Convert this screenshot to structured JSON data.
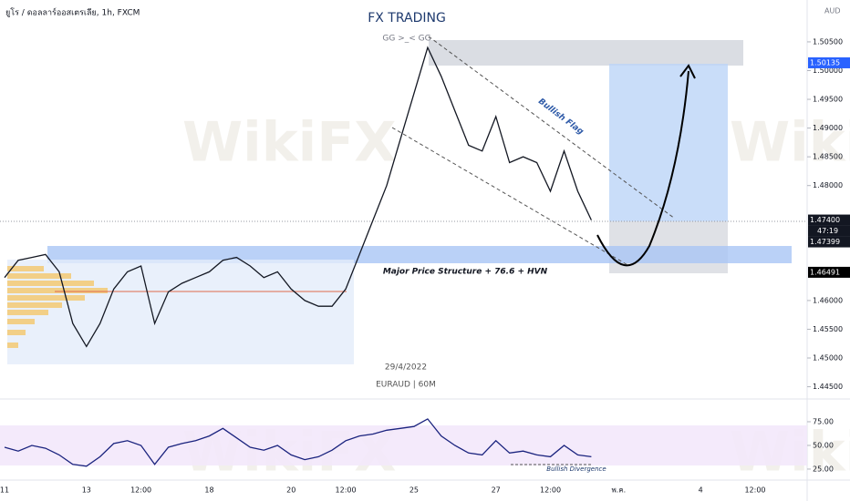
{
  "chart_data": [
    {
      "type": "line",
      "title": "FX TRADING",
      "subtitle": "GG >_< GG",
      "symbol": "ยูโร / ดอลลาร์ออสเตรเลีย, 1h, FXCM",
      "currency": "AUD",
      "watermark": "WikiFX",
      "annotations": [
        "Bullish Flag",
        "Major Price Structure + 76.6 + HVN",
        "29/4/2022",
        "EURAUD | 60M"
      ],
      "countdown": "47:19",
      "categories": [
        "11",
        null,
        null,
        null,
        null,
        null,
        "13",
        null,
        null,
        null,
        "12:00",
        null,
        null,
        null,
        null,
        "18",
        null,
        null,
        null,
        null,
        null,
        "20",
        null,
        null,
        null,
        "12:00",
        null,
        null,
        null,
        null,
        "25",
        null,
        null,
        null,
        null,
        null,
        "27",
        null,
        null,
        null,
        "12:00",
        null,
        null,
        null,
        null,
        "พ.ค.",
        null,
        null,
        null,
        null,
        null,
        "4",
        null,
        null,
        null,
        "12:00"
      ],
      "color": "#131722",
      "values": [
        1.464,
        1.467,
        1.4675,
        1.468,
        1.465,
        1.456,
        1.452,
        1.456,
        1.462,
        1.465,
        1.466,
        1.456,
        1.4615,
        1.463,
        1.464,
        1.465,
        1.467,
        1.4675,
        1.466,
        1.464,
        1.465,
        1.462,
        1.46,
        1.459,
        1.459,
        1.462,
        1.468,
        1.474,
        1.48,
        1.488,
        1.496,
        1.504,
        1.499,
        1.493,
        1.487,
        1.486,
        1.492,
        1.484,
        1.485,
        1.484,
        1.479,
        1.486,
        1.479,
        1.474,
        null,
        null,
        null,
        null,
        null,
        null,
        null,
        null,
        null,
        null,
        null,
        null
      ],
      "ylim": [
        1.44287,
        1.51228
      ],
      "yticks": [
        {
          "value": 1.445,
          "label": "1.44500"
        },
        {
          "value": 1.45,
          "label": "1.45000"
        },
        {
          "value": 1.455,
          "label": "1.45500"
        },
        {
          "value": 1.46,
          "label": "1.46000"
        },
        {
          "value": 1.48,
          "label": "1.48000"
        },
        {
          "value": 1.485,
          "label": "1.48500"
        },
        {
          "value": 1.49,
          "label": "1.49000"
        },
        {
          "value": 1.495,
          "label": "1.49500"
        },
        {
          "value": 1.5,
          "label": "1.50000"
        },
        {
          "value": 1.505,
          "label": "1.50500"
        }
      ],
      "price_labels": [
        {
          "value": 1.50135,
          "label": "1.50135",
          "color": "#2962ff"
        },
        {
          "value": 1.474,
          "label": "1.47400",
          "color": "#131722"
        },
        {
          "value": 1.47399,
          "label": "1.47399",
          "color": "#131722"
        },
        {
          "value": 1.46491,
          "label": "1.46491",
          "color": "#000000"
        }
      ]
    },
    {
      "type": "line",
      "color": "#1a237e",
      "annotations": [
        "Bullish Divergence"
      ],
      "values": [
        48,
        44,
        50,
        47,
        40,
        30,
        28,
        38,
        52,
        55,
        50,
        30,
        48,
        52,
        55,
        60,
        68,
        58,
        48,
        45,
        50,
        40,
        35,
        38,
        45,
        55,
        60,
        62,
        66,
        68,
        70,
        78,
        60,
        50,
        42,
        40,
        55,
        42,
        44,
        40,
        38,
        50,
        40,
        38,
        null,
        null,
        null,
        null,
        null,
        null,
        null,
        null,
        null,
        null,
        null,
        null
      ],
      "ylim": [
        3.8,
        97.1
      ],
      "yticks": [
        {
          "value": 25,
          "label": "25.00"
        },
        {
          "value": 50,
          "label": "50.00"
        },
        {
          "value": 75,
          "label": "75.00"
        }
      ]
    }
  ]
}
